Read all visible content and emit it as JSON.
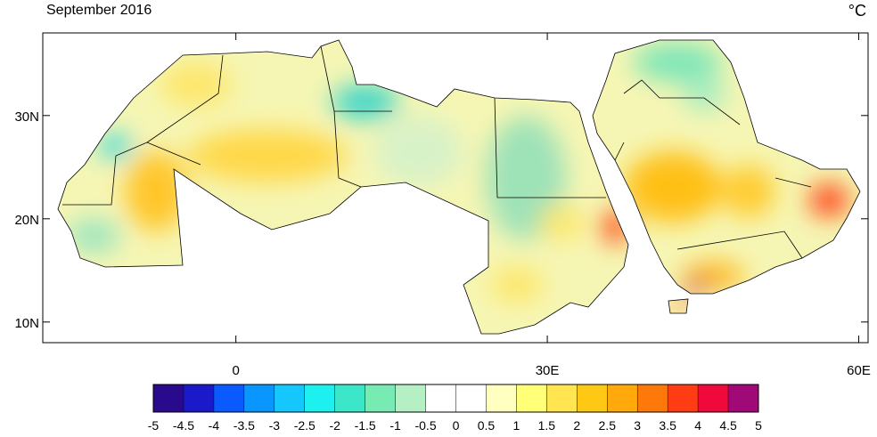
{
  "title": "September 2016",
  "unit": "°C",
  "lonlim": [
    -18.6,
    60.9
  ],
  "latlim": [
    8,
    38
  ],
  "lat_ticks": [
    {
      "value": 30,
      "label": "30N"
    },
    {
      "value": 20,
      "label": "20N"
    },
    {
      "value": 10,
      "label": "10N"
    }
  ],
  "lon_ticks": [
    {
      "value": 0,
      "label": "0"
    },
    {
      "value": 30,
      "label": "30E"
    },
    {
      "value": 60,
      "label": "60E"
    }
  ],
  "colorbar": {
    "ticks": [
      -5,
      -4.5,
      -4,
      -3.5,
      -3,
      -2.5,
      -2,
      -1.5,
      -1,
      -0.5,
      0,
      0.5,
      1,
      1.5,
      2,
      2.5,
      3,
      3.5,
      4,
      4.5,
      5
    ],
    "colors": [
      "#2a0a8c",
      "#1a1ac8",
      "#0a5aff",
      "#0a96ff",
      "#14c8ff",
      "#1ef0f0",
      "#3ce6c8",
      "#78ebb4",
      "#b4f0c3",
      "#ffffff",
      "#ffffff",
      "#ffffc0",
      "#ffff78",
      "#ffe650",
      "#ffc814",
      "#ffaa0a",
      "#ff780a",
      "#ff3c14",
      "#f00a3c",
      "#a00a78"
    ]
  }
}
